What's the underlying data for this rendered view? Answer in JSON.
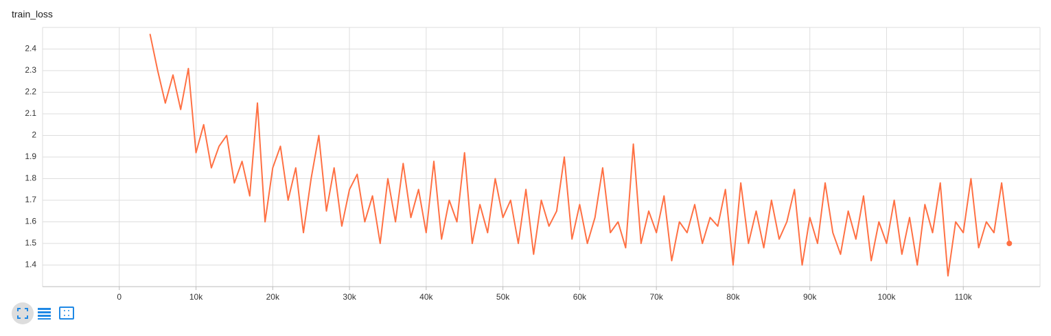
{
  "chart_data": {
    "type": "line",
    "title": "train_loss",
    "x": [
      4000,
      5000,
      6000,
      7000,
      8000,
      9000,
      10000,
      11000,
      12000,
      13000,
      14000,
      15000,
      16000,
      17000,
      18000,
      19000,
      20000,
      21000,
      22000,
      23000,
      24000,
      25000,
      26000,
      27000,
      28000,
      29000,
      30000,
      31000,
      32000,
      33000,
      34000,
      35000,
      36000,
      37000,
      38000,
      39000,
      40000,
      41000,
      42000,
      43000,
      44000,
      45000,
      46000,
      47000,
      48000,
      49000,
      50000,
      51000,
      52000,
      53000,
      54000,
      55000,
      56000,
      57000,
      58000,
      59000,
      60000,
      61000,
      62000,
      63000,
      64000,
      65000,
      66000,
      67000,
      68000,
      69000,
      70000,
      71000,
      72000,
      73000,
      74000,
      75000,
      76000,
      77000,
      78000,
      79000,
      80000,
      81000,
      82000,
      83000,
      84000,
      85000,
      86000,
      87000,
      88000,
      89000,
      90000,
      91000,
      92000,
      93000,
      94000,
      95000,
      96000,
      97000,
      98000,
      99000,
      100000,
      101000,
      102000,
      103000,
      104000,
      105000,
      106000,
      107000,
      108000,
      109000,
      110000,
      111000,
      112000,
      113000,
      114000,
      115000,
      116000
    ],
    "series": [
      {
        "color": "#ff7043",
        "values": [
          2.47,
          2.3,
          2.15,
          2.28,
          2.12,
          2.31,
          1.92,
          2.05,
          1.85,
          1.95,
          2.0,
          1.78,
          1.88,
          1.72,
          2.15,
          1.6,
          1.85,
          1.95,
          1.7,
          1.85,
          1.55,
          1.8,
          2.0,
          1.65,
          1.85,
          1.58,
          1.75,
          1.82,
          1.6,
          1.72,
          1.5,
          1.8,
          1.6,
          1.87,
          1.62,
          1.75,
          1.55,
          1.88,
          1.52,
          1.7,
          1.6,
          1.92,
          1.5,
          1.68,
          1.55,
          1.8,
          1.62,
          1.7,
          1.5,
          1.75,
          1.45,
          1.7,
          1.58,
          1.65,
          1.9,
          1.52,
          1.68,
          1.5,
          1.62,
          1.85,
          1.55,
          1.6,
          1.48,
          1.96,
          1.5,
          1.65,
          1.55,
          1.72,
          1.42,
          1.6,
          1.55,
          1.68,
          1.5,
          1.62,
          1.58,
          1.75,
          1.4,
          1.78,
          1.5,
          1.65,
          1.48,
          1.7,
          1.52,
          1.6,
          1.75,
          1.4,
          1.62,
          1.5,
          1.78,
          1.55,
          1.45,
          1.65,
          1.52,
          1.72,
          1.42,
          1.6,
          1.5,
          1.7,
          1.45,
          1.62,
          1.4,
          1.68,
          1.55,
          1.78,
          1.35,
          1.6,
          1.55,
          1.8,
          1.48,
          1.6,
          1.55,
          1.78,
          1.5
        ]
      }
    ],
    "xlim": [
      -10000,
      120000
    ],
    "xticks": [
      0,
      {
        "value": 10000,
        "label": "10k"
      },
      {
        "value": 20000,
        "label": "20k"
      },
      {
        "value": 30000,
        "label": "30k"
      },
      {
        "value": 40000,
        "label": "40k"
      },
      {
        "value": 50000,
        "label": "50k"
      },
      {
        "value": 60000,
        "label": "60k"
      },
      {
        "value": 70000,
        "label": "70k"
      },
      {
        "value": 80000,
        "label": "80k"
      },
      {
        "value": 90000,
        "label": "90k"
      },
      {
        "value": 100000,
        "label": "100k"
      },
      {
        "value": 110000,
        "label": "110k"
      }
    ],
    "ylim": [
      1.3,
      2.5
    ],
    "yticks": [
      1.4,
      1.5,
      1.6,
      1.7,
      1.8,
      1.9,
      2,
      2.1,
      2.2,
      2.3,
      2.4
    ],
    "grid": true
  }
}
